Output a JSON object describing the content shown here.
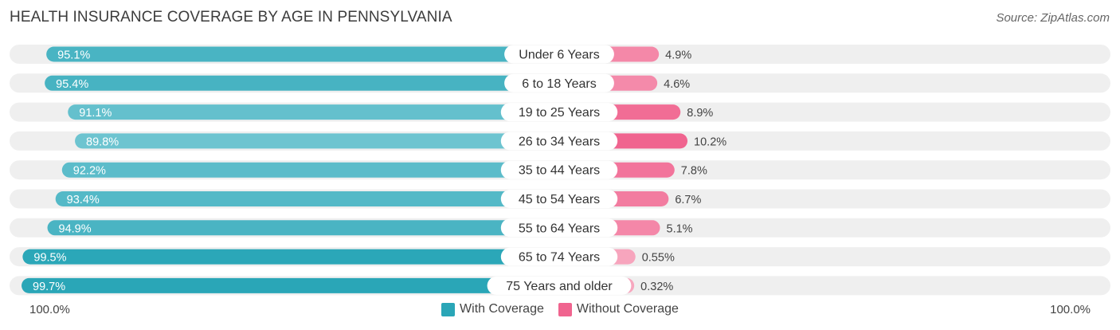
{
  "title": "HEALTH INSURANCE COVERAGE BY AGE IN PENNSYLVANIA",
  "source": "Source: ZipAtlas.com",
  "axis": {
    "left_label": "100.0%",
    "right_label": "100.0%"
  },
  "legend": {
    "with_label": "With Coverage",
    "without_label": "Without Coverage"
  },
  "colors": {
    "with_dark": "#2aa6b7",
    "with_light": "#72c6d2",
    "without_dark": "#f0648f",
    "without_light": "#f7a9c0",
    "track": "#efefef"
  },
  "chart_data": {
    "type": "bar",
    "orientation": "horizontal-diverging",
    "title": "HEALTH INSURANCE COVERAGE BY AGE IN PENNSYLVANIA",
    "categories": [
      "Under 6 Years",
      "6 to 18 Years",
      "19 to 25 Years",
      "26 to 34 Years",
      "35 to 44 Years",
      "45 to 54 Years",
      "55 to 64 Years",
      "65 to 74 Years",
      "75 Years and older"
    ],
    "series": [
      {
        "name": "With Coverage",
        "values": [
          95.1,
          95.4,
          91.1,
          89.8,
          92.2,
          93.4,
          94.9,
          99.5,
          99.7
        ],
        "labels": [
          "95.1%",
          "95.4%",
          "91.1%",
          "89.8%",
          "92.2%",
          "93.4%",
          "94.9%",
          "99.5%",
          "99.7%"
        ]
      },
      {
        "name": "Without Coverage",
        "values": [
          4.9,
          4.6,
          8.9,
          10.2,
          7.8,
          6.7,
          5.1,
          0.55,
          0.32
        ],
        "labels": [
          "4.9%",
          "4.6%",
          "8.9%",
          "10.2%",
          "7.8%",
          "6.7%",
          "5.1%",
          "0.55%",
          "0.32%"
        ]
      }
    ],
    "xlim": [
      0,
      100
    ],
    "xlabel_left": "100.0%",
    "xlabel_right": "100.0%",
    "legend_position": "bottom-center"
  }
}
